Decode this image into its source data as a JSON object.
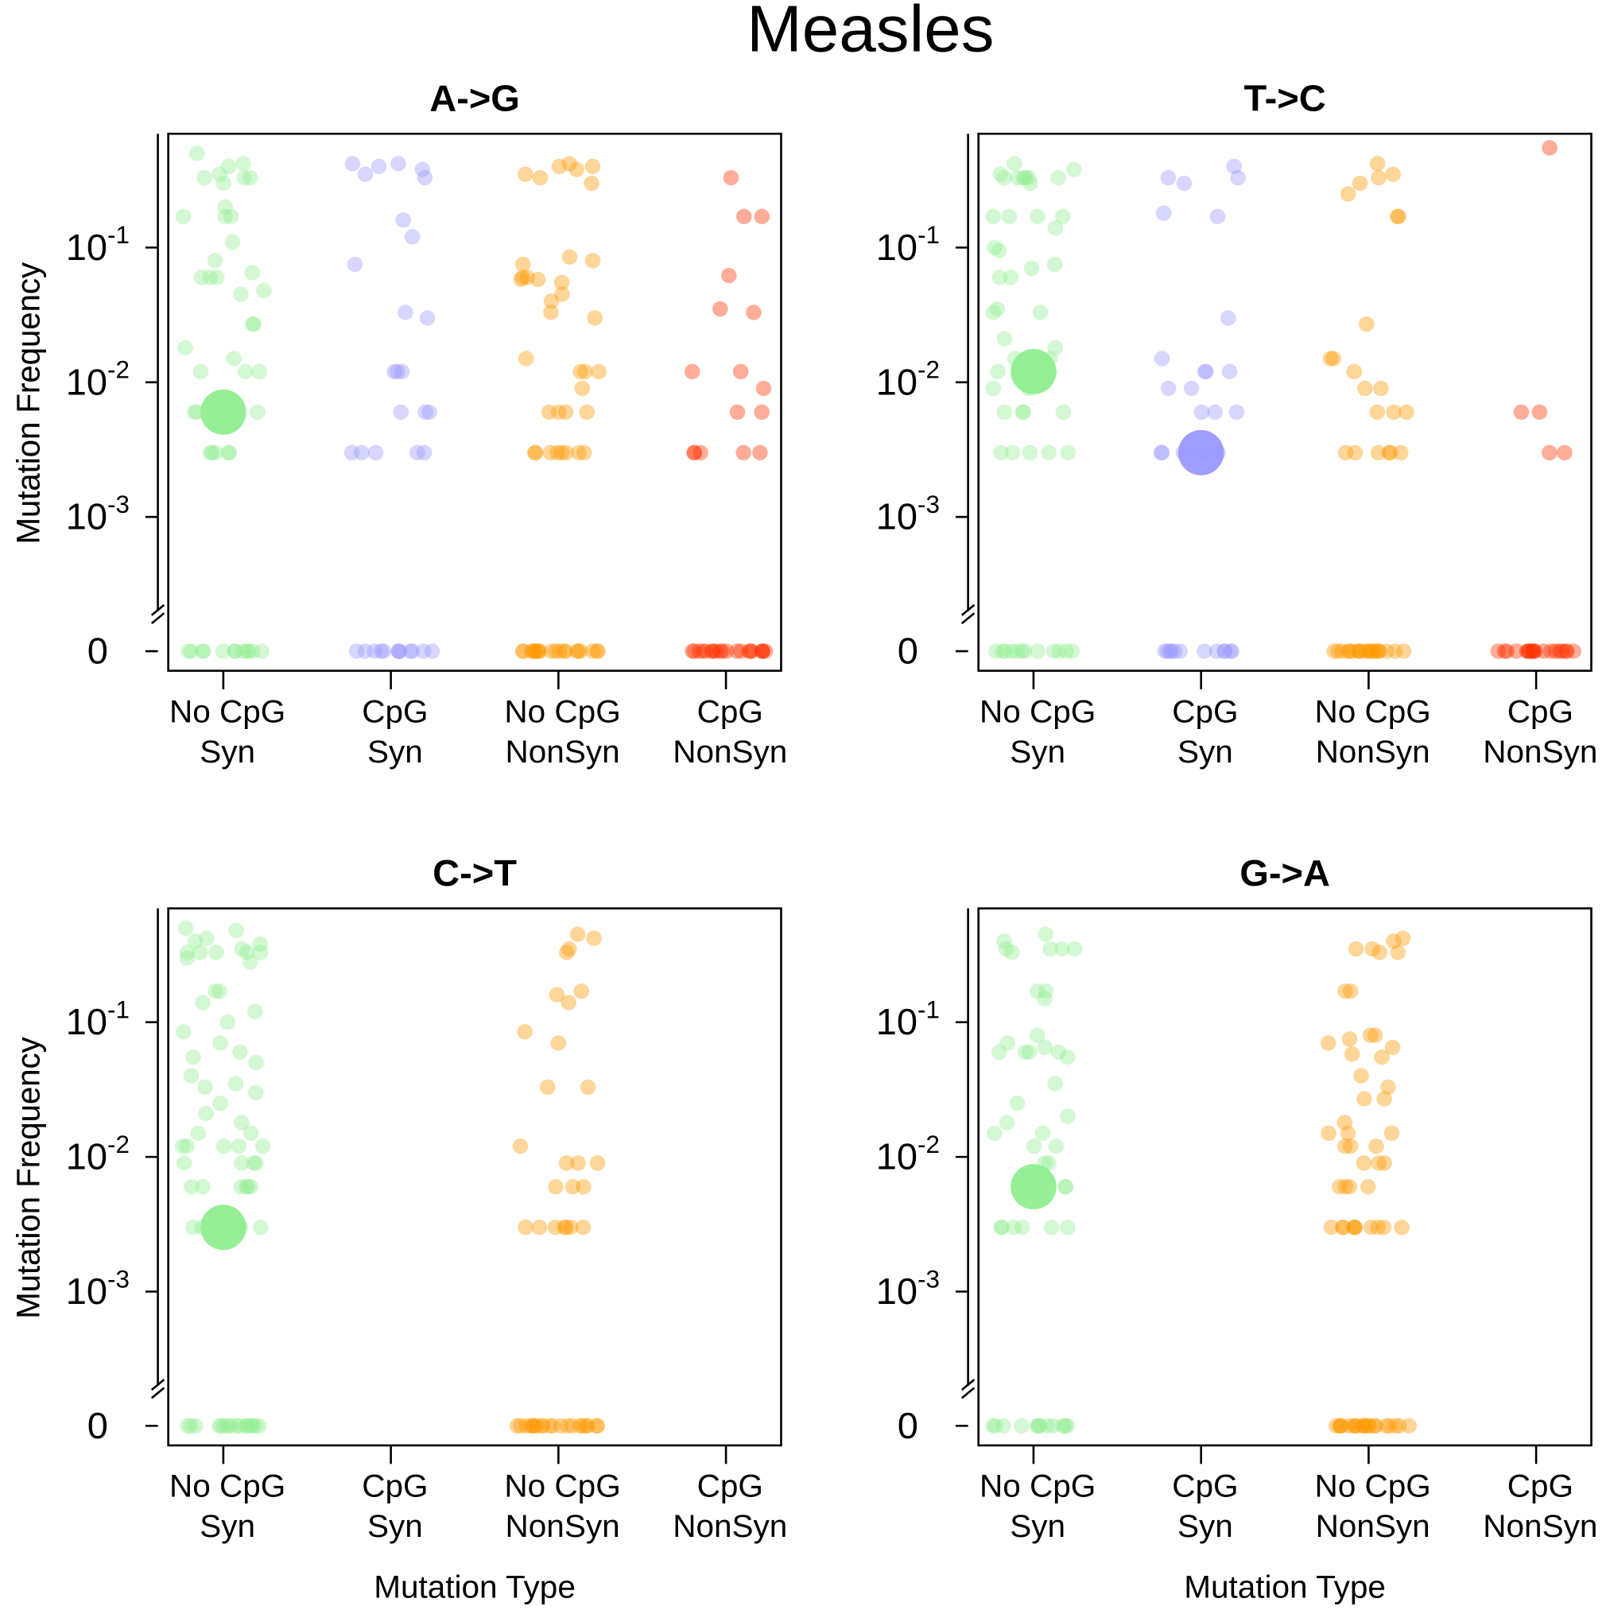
{
  "title": "Measles",
  "chart_data": [
    {
      "type": "scatter",
      "title": "A->G",
      "ylabel": "Mutation Frequency",
      "log_y": true,
      "y_break": true,
      "categories": [
        [
          "No CpG",
          "Syn"
        ],
        [
          "CpG",
          "Syn"
        ],
        [
          "No CpG",
          "NonSyn"
        ],
        [
          "CpG",
          "NonSyn"
        ]
      ],
      "ylim": [
        0.0002,
        0.7
      ],
      "yticks": [
        {
          "value": 0.1,
          "label": "10",
          "exponent": "-1"
        },
        {
          "value": 0.01,
          "label": "10",
          "exponent": "-2"
        },
        {
          "value": 0.001,
          "label": "10",
          "exponent": "-3"
        },
        0
      ],
      "series": [
        {
          "color": "#90ee90",
          "median": 0.006,
          "values": [
            0.5,
            0.42,
            0.4,
            0.35,
            0.33,
            0.33,
            0.33,
            0.3,
            0.2,
            0.17,
            0.17,
            0.17,
            0.11,
            0.08,
            0.065,
            0.06,
            0.06,
            0.06,
            0.048,
            0.045,
            0.027,
            0.027,
            0.018,
            0.015,
            0.012,
            0.012,
            0.012,
            0.006,
            0.006,
            0.006,
            0.003,
            0.003,
            0.003,
            0.003,
            0.003,
            0,
            0,
            0,
            0,
            0,
            0,
            0,
            0,
            0,
            0,
            0,
            0
          ]
        },
        {
          "color": "#9999ff",
          "median": null,
          "values": [
            0.42,
            0.42,
            0.4,
            0.38,
            0.35,
            0.33,
            0.16,
            0.12,
            0.075,
            0.033,
            0.03,
            0.012,
            0.012,
            0.012,
            0.006,
            0.006,
            0.006,
            0.003,
            0.003,
            0.003,
            0.003,
            0.003,
            0,
            0,
            0,
            0,
            0,
            0,
            0,
            0,
            0,
            0,
            0,
            0
          ]
        },
        {
          "color": "#ff9900",
          "median": null,
          "values": [
            0.42,
            0.4,
            0.4,
            0.38,
            0.35,
            0.33,
            0.3,
            0.085,
            0.08,
            0.075,
            0.06,
            0.06,
            0.058,
            0.058,
            0.055,
            0.045,
            0.04,
            0.033,
            0.03,
            0.015,
            0.012,
            0.012,
            0.012,
            0.009,
            0.006,
            0.006,
            0.006,
            0.006,
            0.003,
            0.003,
            0.003,
            0.003,
            0.003,
            0.003,
            0.003,
            0.003,
            0,
            0,
            0,
            0,
            0,
            0,
            0,
            0,
            0,
            0,
            0,
            0,
            0,
            0,
            0,
            0,
            0,
            0,
            0,
            0
          ]
        },
        {
          "color": "#ff3300",
          "median": null,
          "values": [
            0.33,
            0.17,
            0.17,
            0.062,
            0.035,
            0.033,
            0.012,
            0.012,
            0.009,
            0.006,
            0.006,
            0.003,
            0.003,
            0.003,
            0.003,
            0.003,
            0,
            0,
            0,
            0,
            0,
            0,
            0,
            0,
            0,
            0,
            0,
            0,
            0,
            0,
            0,
            0,
            0,
            0,
            0,
            0
          ]
        }
      ]
    },
    {
      "type": "scatter",
      "title": "T->C",
      "ylabel": "Mutation Frequency",
      "log_y": true,
      "y_break": true,
      "categories": [
        [
          "No CpG",
          "Syn"
        ],
        [
          "CpG",
          "Syn"
        ],
        [
          "No CpG",
          "NonSyn"
        ],
        [
          "CpG",
          "NonSyn"
        ]
      ],
      "ylim": [
        0.0002,
        0.7
      ],
      "yticks": [
        {
          "value": 0.1,
          "label": "10",
          "exponent": "-1"
        },
        {
          "value": 0.01,
          "label": "10",
          "exponent": "-2"
        },
        {
          "value": 0.001,
          "label": "10",
          "exponent": "-3"
        },
        0
      ],
      "series": [
        {
          "color": "#90ee90",
          "median": 0.012,
          "values": [
            0.42,
            0.38,
            0.35,
            0.33,
            0.33,
            0.33,
            0.33,
            0.33,
            0.33,
            0.3,
            0.17,
            0.17,
            0.17,
            0.17,
            0.14,
            0.1,
            0.095,
            0.075,
            0.07,
            0.06,
            0.06,
            0.035,
            0.033,
            0.033,
            0.021,
            0.018,
            0.015,
            0.015,
            0.012,
            0.012,
            0.009,
            0.009,
            0.006,
            0.006,
            0.006,
            0.006,
            0.003,
            0.003,
            0.003,
            0.003,
            0.003,
            0,
            0,
            0,
            0,
            0,
            0,
            0,
            0,
            0,
            0,
            0,
            0
          ]
        },
        {
          "color": "#9999ff",
          "median": 0.003,
          "values": [
            0.4,
            0.33,
            0.33,
            0.3,
            0.18,
            0.17,
            0.03,
            0.015,
            0.012,
            0.012,
            0.012,
            0.009,
            0.009,
            0.006,
            0.006,
            0.006,
            0.003,
            0.003,
            0.003,
            0.003,
            0.003,
            0,
            0,
            0,
            0,
            0,
            0,
            0,
            0,
            0,
            0,
            0,
            0
          ]
        },
        {
          "color": "#ff9900",
          "median": null,
          "values": [
            0.42,
            0.35,
            0.33,
            0.3,
            0.25,
            0.17,
            0.17,
            0.027,
            0.015,
            0.015,
            0.012,
            0.009,
            0.009,
            0.006,
            0.006,
            0.006,
            0.003,
            0.003,
            0.003,
            0.003,
            0.003,
            0.003,
            0,
            0,
            0,
            0,
            0,
            0,
            0,
            0,
            0,
            0,
            0,
            0,
            0,
            0,
            0,
            0,
            0,
            0,
            0,
            0
          ]
        },
        {
          "color": "#ff3300",
          "median": null,
          "values": [
            0.55,
            0.006,
            0.006,
            0.003,
            0.003,
            0,
            0,
            0,
            0,
            0,
            0,
            0,
            0,
            0,
            0,
            0,
            0,
            0,
            0,
            0,
            0,
            0,
            0,
            0,
            0
          ]
        }
      ]
    },
    {
      "type": "scatter",
      "title": "C->T",
      "ylabel": "Mutation Frequency",
      "xlabel": "Mutation Type",
      "log_y": true,
      "y_break": true,
      "categories": [
        [
          "No CpG",
          "Syn"
        ],
        [
          "CpG",
          "Syn"
        ],
        [
          "No CpG",
          "NonSyn"
        ],
        [
          "CpG",
          "NonSyn"
        ]
      ],
      "ylim": [
        0.0002,
        0.7
      ],
      "yticks": [
        {
          "value": 0.1,
          "label": "10",
          "exponent": "-1"
        },
        {
          "value": 0.01,
          "label": "10",
          "exponent": "-2"
        },
        {
          "value": 0.001,
          "label": "10",
          "exponent": "-3"
        },
        0
      ],
      "series": [
        {
          "color": "#90ee90",
          "median": 0.003,
          "values": [
            0.5,
            0.48,
            0.42,
            0.4,
            0.38,
            0.35,
            0.33,
            0.33,
            0.33,
            0.33,
            0.33,
            0.3,
            0.28,
            0.17,
            0.17,
            0.14,
            0.12,
            0.1,
            0.085,
            0.07,
            0.06,
            0.055,
            0.05,
            0.04,
            0.035,
            0.033,
            0.03,
            0.025,
            0.021,
            0.018,
            0.015,
            0.015,
            0.012,
            0.012,
            0.012,
            0.012,
            0.012,
            0.009,
            0.009,
            0.009,
            0.009,
            0.006,
            0.006,
            0.006,
            0.006,
            0.006,
            0.006,
            0.003,
            0.003,
            0.003,
            0.003,
            0.003,
            0.003,
            0.003,
            0.003,
            0,
            0,
            0,
            0,
            0,
            0,
            0,
            0,
            0,
            0,
            0,
            0,
            0,
            0,
            0,
            0
          ]
        },
        {
          "color": "#9999ff",
          "median": null,
          "values": []
        },
        {
          "color": "#ff9900",
          "median": null,
          "values": [
            0.45,
            0.42,
            0.35,
            0.33,
            0.17,
            0.16,
            0.14,
            0.085,
            0.07,
            0.033,
            0.033,
            0.012,
            0.009,
            0.009,
            0.009,
            0.006,
            0.006,
            0.006,
            0.003,
            0.003,
            0.003,
            0.003,
            0.003,
            0.003,
            0.003,
            0,
            0,
            0,
            0,
            0,
            0,
            0,
            0,
            0,
            0,
            0,
            0,
            0,
            0,
            0,
            0,
            0,
            0,
            0,
            0
          ]
        },
        {
          "color": "#ff3300",
          "median": null,
          "values": []
        }
      ]
    },
    {
      "type": "scatter",
      "title": "G->A",
      "ylabel": "Mutation Frequency",
      "xlabel": "Mutation Type",
      "log_y": true,
      "y_break": true,
      "categories": [
        [
          "No CpG",
          "Syn"
        ],
        [
          "CpG",
          "Syn"
        ],
        [
          "No CpG",
          "NonSyn"
        ],
        [
          "CpG",
          "NonSyn"
        ]
      ],
      "ylim": [
        0.0002,
        0.7
      ],
      "yticks": [
        {
          "value": 0.1,
          "label": "10",
          "exponent": "-1"
        },
        {
          "value": 0.01,
          "label": "10",
          "exponent": "-2"
        },
        {
          "value": 0.001,
          "label": "10",
          "exponent": "-3"
        },
        0
      ],
      "series": [
        {
          "color": "#90ee90",
          "median": 0.006,
          "values": [
            0.45,
            0.4,
            0.35,
            0.35,
            0.35,
            0.35,
            0.33,
            0.17,
            0.17,
            0.15,
            0.08,
            0.07,
            0.065,
            0.06,
            0.06,
            0.06,
            0.06,
            0.055,
            0.035,
            0.025,
            0.02,
            0.018,
            0.015,
            0.015,
            0.012,
            0.012,
            0.009,
            0.009,
            0.006,
            0.006,
            0.003,
            0.003,
            0.003,
            0.003,
            0.003,
            0.003,
            0,
            0,
            0,
            0,
            0,
            0,
            0,
            0,
            0,
            0,
            0,
            0
          ]
        },
        {
          "color": "#9999ff",
          "median": null,
          "values": []
        },
        {
          "color": "#ff9900",
          "median": null,
          "values": [
            0.42,
            0.4,
            0.35,
            0.35,
            0.33,
            0.33,
            0.17,
            0.17,
            0.08,
            0.08,
            0.075,
            0.07,
            0.065,
            0.058,
            0.055,
            0.04,
            0.033,
            0.027,
            0.027,
            0.018,
            0.015,
            0.015,
            0.015,
            0.012,
            0.012,
            0.012,
            0.009,
            0.009,
            0.009,
            0.006,
            0.006,
            0.006,
            0.006,
            0.003,
            0.003,
            0.003,
            0.003,
            0.003,
            0.003,
            0.003,
            0.003,
            0.003,
            0.003,
            0,
            0,
            0,
            0,
            0,
            0,
            0,
            0,
            0,
            0,
            0,
            0,
            0,
            0,
            0,
            0,
            0,
            0,
            0,
            0
          ]
        },
        {
          "color": "#ff3300",
          "median": null,
          "values": []
        }
      ]
    }
  ]
}
